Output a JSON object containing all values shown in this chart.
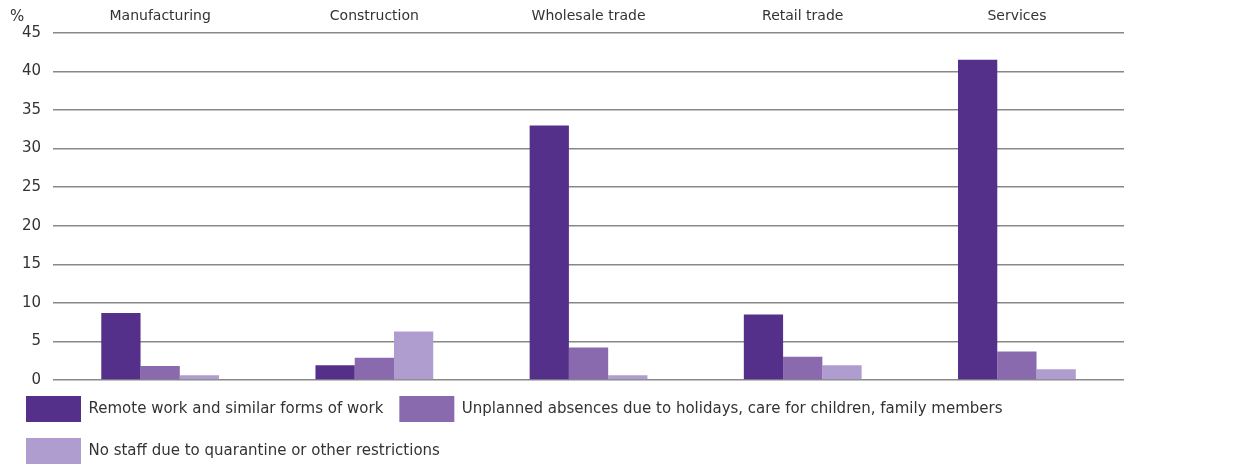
{
  "chart_data": {
    "type": "bar",
    "ylabel": "%",
    "categories": [
      "Manufacturing",
      "Construction",
      "Wholesale trade",
      "Retail trade",
      "Services"
    ],
    "series": [
      {
        "name": "Remote work and similar forms of work",
        "color": "#55308a",
        "values": [
          8.7,
          1.9,
          33.0,
          8.5,
          41.5
        ]
      },
      {
        "name": "Unplanned absences due to holidays, care for children, family members",
        "color": "#8a6aae",
        "values": [
          1.8,
          2.9,
          4.2,
          3.0,
          3.7
        ]
      },
      {
        "name": "No staff due to quarantine or other restrictions",
        "color": "#b09dd0",
        "values": [
          0.6,
          6.3,
          0.6,
          1.9,
          1.4
        ]
      }
    ],
    "ylim": [
      0,
      45
    ],
    "yticks": [
      0,
      5,
      10,
      15,
      20,
      25,
      30,
      35,
      40,
      45
    ],
    "grid": "y",
    "legend": "bottom"
  }
}
